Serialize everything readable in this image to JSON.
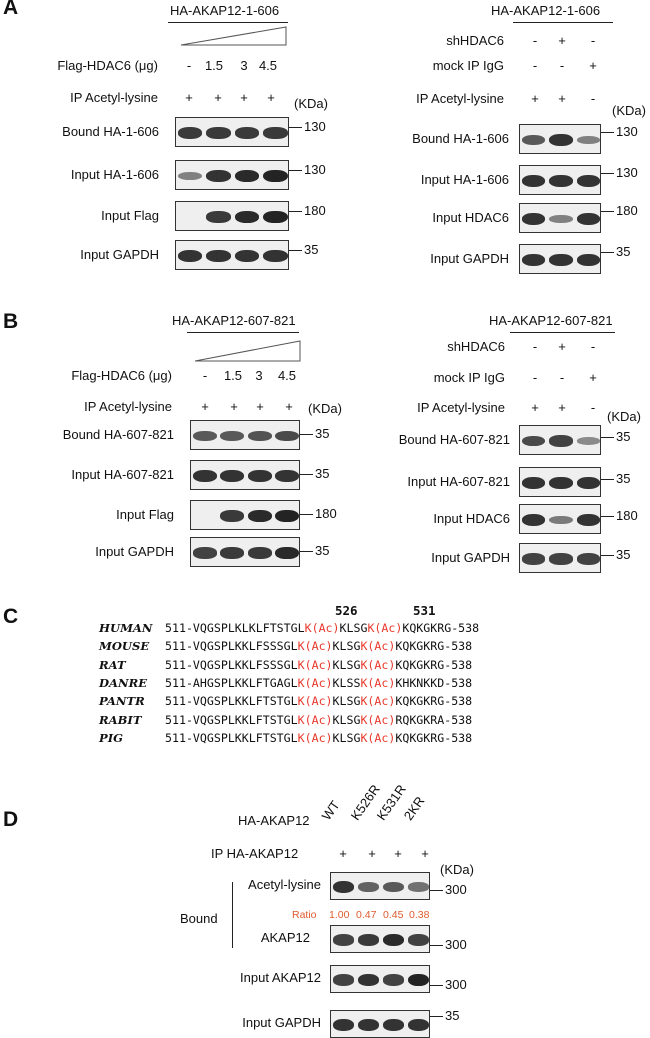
{
  "panelA": {
    "letter": "A",
    "left": {
      "construct": "HA-AKAP12-1-606",
      "treatment_label": "Flag-HDAC6 (μg)",
      "doses": [
        "-",
        "1.5",
        "3",
        "4.5"
      ],
      "ip_label": "IP Acetyl-lysine",
      "ip_signs": [
        "+",
        "+",
        "+",
        "+"
      ],
      "kda_unit": "(KDa)",
      "blots": [
        {
          "label": "Bound HA-1-606",
          "kda": "130",
          "intensity": [
            0.8,
            0.8,
            0.8,
            0.8
          ]
        },
        {
          "label": "Input HA-1-606",
          "kda": "130",
          "intensity": [
            0.35,
            0.85,
            0.9,
            0.95
          ]
        },
        {
          "label": "Input Flag",
          "kda": "180",
          "intensity": [
            0,
            0.8,
            0.9,
            0.95
          ]
        },
        {
          "label": "Input GAPDH",
          "kda": "35",
          "intensity": [
            0.85,
            0.85,
            0.85,
            0.85
          ]
        }
      ]
    },
    "right": {
      "construct": "HA-AKAP12-1-606",
      "rows": [
        {
          "label": "shHDAC6",
          "signs": [
            "-",
            "+",
            "-"
          ]
        },
        {
          "label": "mock IP IgG",
          "signs": [
            "-",
            "-",
            "+"
          ]
        },
        {
          "label": "IP Acetyl-lysine",
          "signs": [
            "+",
            "+",
            "-"
          ]
        }
      ],
      "kda_unit": "(KDa)",
      "blots": [
        {
          "label": "Bound HA-1-606",
          "kda": "130",
          "intensity": [
            0.6,
            0.85,
            0.35
          ]
        },
        {
          "label": "Input HA-1-606",
          "kda": "130",
          "intensity": [
            0.85,
            0.85,
            0.85
          ]
        },
        {
          "label": "Input HDAC6",
          "kda": "180",
          "intensity": [
            0.85,
            0.35,
            0.85
          ]
        },
        {
          "label": "Input GAPDH",
          "kda": "35",
          "intensity": [
            0.85,
            0.85,
            0.85
          ]
        }
      ]
    }
  },
  "panelB": {
    "letter": "B",
    "left": {
      "construct": "HA-AKAP12-607-821",
      "treatment_label": "Flag-HDAC6 (μg)",
      "doses": [
        "-",
        "1.5",
        "3",
        "4.5"
      ],
      "ip_label": "IP Acetyl-lysine",
      "ip_signs": [
        "+",
        "+",
        "+",
        "+"
      ],
      "kda_unit": "(KDa)",
      "blots": [
        {
          "label": "Bound HA-607-821",
          "kda": "35",
          "intensity": [
            0.6,
            0.6,
            0.65,
            0.7
          ]
        },
        {
          "label": "Input HA-607-821",
          "kda": "35",
          "intensity": [
            0.85,
            0.85,
            0.85,
            0.85
          ]
        },
        {
          "label": "Input Flag",
          "kda": "180",
          "intensity": [
            0,
            0.8,
            0.9,
            0.95
          ]
        },
        {
          "label": "Input GAPDH",
          "kda": "35",
          "intensity": [
            0.75,
            0.8,
            0.8,
            0.9
          ]
        }
      ]
    },
    "right": {
      "construct": "HA-AKAP12-607-821",
      "rows": [
        {
          "label": "shHDAC6",
          "signs": [
            "-",
            "+",
            "-"
          ]
        },
        {
          "label": "mock IP IgG",
          "signs": [
            "-",
            "-",
            "+"
          ]
        },
        {
          "label": "IP Acetyl-lysine",
          "signs": [
            "+",
            "+",
            "-"
          ]
        }
      ],
      "kda_unit": "(KDa)",
      "blots": [
        {
          "label": "Bound HA-607-821",
          "kda": "35",
          "intensity": [
            0.7,
            0.75,
            0.3
          ]
        },
        {
          "label": "Input HA-607-821",
          "kda": "35",
          "intensity": [
            0.85,
            0.85,
            0.85
          ]
        },
        {
          "label": "Input HDAC6",
          "kda": "180",
          "intensity": [
            0.85,
            0.4,
            0.85
          ]
        },
        {
          "label": "Input GAPDH",
          "kda": "35",
          "intensity": [
            0.75,
            0.75,
            0.75
          ]
        }
      ]
    }
  },
  "panelC": {
    "letter": "C",
    "site1": "526",
    "site2": "531",
    "rows": [
      {
        "species": "HUMAN",
        "pre": "511-VQGSPLKLKLFTSTGL",
        "mod1": "K(Ac)",
        "mid": "KLSG",
        "mod2": "K(Ac)",
        "post": "KQKGKRG-538"
      },
      {
        "species": "MOUSE",
        "pre": "511-VQGSPLKKLFSSSGL",
        "mod1": "K(Ac)",
        "mid": "KLSG",
        "mod2": "K(Ac)",
        "post": "KQKGKRG-538"
      },
      {
        "species": "RAT",
        "pre": "511-VQGSPLKKLFSSSGL",
        "mod1": "K(Ac)",
        "mid": "KLSG",
        "mod2": "K(Ac)",
        "post": "KQKGKRG-538"
      },
      {
        "species": "DANRE",
        "pre": "511-AHGSPLKKLFTGAGL",
        "mod1": "K(Ac)",
        "mid": "KLSS",
        "mod2": "K(Ac)",
        "post": "KHKNKKD-538"
      },
      {
        "species": "PANTR",
        "pre": "511-VQGSPLKKLFTSTGL",
        "mod1": "K(Ac)",
        "mid": "KLSG",
        "mod2": "K(Ac)",
        "post": "KQKGKRG-538"
      },
      {
        "species": "RABIT",
        "pre": "511-VQGSPLKKLFTSTGL",
        "mod1": "K(Ac)",
        "mid": "KLSG",
        "mod2": "K(Ac)",
        "post": "RQKGKRA-538"
      },
      {
        "species": "PIG",
        "pre": "511-VQGSPLKKLFTSTGL",
        "mod1": "K(Ac)",
        "mid": "KLSG",
        "mod2": "K(Ac)",
        "post": "KQKGKRG-538"
      }
    ]
  },
  "panelD": {
    "letter": "D",
    "construct_label": "HA-AKAP12",
    "lanes": [
      "WT",
      "K526R",
      "K531R",
      "2KR"
    ],
    "ip_label": "IP HA-AKAP12",
    "ip_signs": [
      "+",
      "+",
      "+",
      "+"
    ],
    "kda_unit": "(KDa)",
    "bound_label": "Bound",
    "ratio_label": "Ratio",
    "ratios": [
      "1.00",
      "0.47",
      "0.45",
      "0.38"
    ],
    "blots": [
      {
        "label": "Acetyl-lysine",
        "kda": "300",
        "intensity": [
          0.85,
          0.55,
          0.6,
          0.45
        ]
      },
      {
        "label": "AKAP12",
        "kda": "300",
        "intensity": [
          0.75,
          0.8,
          0.9,
          0.75
        ]
      },
      {
        "label": "Input AKAP12",
        "kda": "300",
        "intensity": [
          0.75,
          0.85,
          0.75,
          0.95
        ]
      },
      {
        "label": "Input GAPDH",
        "kda": "35",
        "intensity": [
          0.85,
          0.85,
          0.85,
          0.85
        ]
      }
    ]
  }
}
